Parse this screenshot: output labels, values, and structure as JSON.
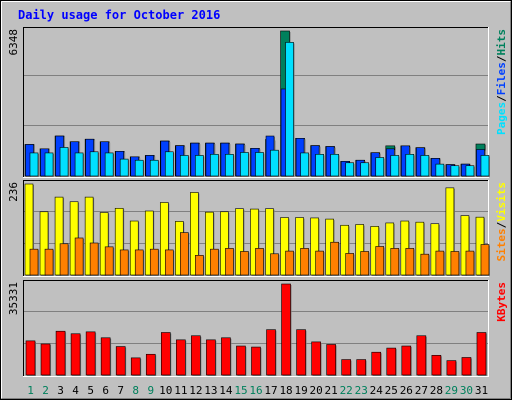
{
  "chart_data": {
    "type": "bar",
    "title": "Daily usage for October 2016",
    "colors": {
      "background": "#c0c0c0",
      "plot_area": "#c0c0c0",
      "title_text": "#0000ff",
      "hits": "#00805c",
      "files": "#0040ff",
      "pages": "#00e0ff",
      "visits": "#ffff00",
      "sites": "#ff8000",
      "kbytes": "#ff0000",
      "weekday_label": "#000000",
      "weekend_label": "#00805c",
      "gridline": "#808080"
    },
    "days": [
      "1",
      "2",
      "3",
      "4",
      "5",
      "6",
      "7",
      "8",
      "9",
      "10",
      "11",
      "12",
      "13",
      "14",
      "15",
      "16",
      "17",
      "18",
      "19",
      "20",
      "21",
      "22",
      "23",
      "24",
      "25",
      "26",
      "27",
      "28",
      "29",
      "30",
      "31"
    ],
    "weekend_days": [
      "1",
      "2",
      "8",
      "9",
      "15",
      "16",
      "22",
      "23",
      "29",
      "30"
    ],
    "panels": [
      {
        "id": "hits",
        "ymax": 6348,
        "max_label": "6348",
        "gridlines": [
          0.35,
          0.7
        ],
        "legend": [
          {
            "text": "Pages",
            "color": "#00e0ff"
          },
          {
            "text": "/",
            "color": "#000000"
          },
          {
            "text": "Files",
            "color": "#0040ff"
          },
          {
            "text": "/",
            "color": "#000000"
          },
          {
            "text": "Hits",
            "color": "#00805c"
          }
        ],
        "series": [
          {
            "name": "Hits",
            "color": "#00805c",
            "values": [
              1380,
              1190,
              1750,
              1500,
              1610,
              1500,
              1080,
              840,
              900,
              1530,
              1330,
              1440,
              1440,
              1440,
              1400,
              1210,
              1600,
              6348,
              1650,
              1330,
              1290,
              640,
              690,
              1020,
              1320,
              1320,
              1240,
              770,
              500,
              520,
              1400
            ]
          },
          {
            "name": "Files",
            "color": "#0040ff",
            "values": [
              1380,
              1190,
              1750,
              1500,
              1610,
              1500,
              1080,
              840,
              900,
              1530,
              1330,
              1440,
              1440,
              1440,
              1400,
              1210,
              1750,
              3810,
              1650,
              1330,
              1290,
              640,
              690,
              1020,
              1190,
              1320,
              1240,
              770,
              500,
              520,
              1160
            ]
          },
          {
            "name": "Pages",
            "color": "#00e0ff",
            "values": [
              1010,
              1010,
              1250,
              1010,
              1060,
              1010,
              740,
              690,
              690,
              1060,
              900,
              900,
              950,
              950,
              1030,
              1030,
              1130,
              5850,
              1010,
              950,
              950,
              580,
              580,
              810,
              900,
              950,
              900,
              520,
              450,
              450,
              900
            ]
          }
        ]
      },
      {
        "id": "visits",
        "ymax": 236,
        "max_label": "236",
        "gridlines": [
          0.35,
          0.7
        ],
        "legend": [
          {
            "text": "Sites",
            "color": "#ff8000"
          },
          {
            "text": "/",
            "color": "#000000"
          },
          {
            "text": "Visits",
            "color": "#ffff00"
          }
        ],
        "series": [
          {
            "name": "Visits",
            "color": "#ffff00",
            "values": [
              236,
              164,
              202,
              190,
              202,
              162,
              173,
              140,
              166,
              188,
              139,
              214,
              163,
              164,
              172,
              171,
              172,
              149,
              149,
              148,
              145,
              129,
              131,
              126,
              135,
              140,
              137,
              133,
              226,
              154,
              150
            ]
          },
          {
            "name": "Sites",
            "color": "#ff8000",
            "values": [
              67,
              67,
              81,
              96,
              83,
              73,
              65,
              65,
              67,
              65,
              110,
              51,
              67,
              69,
              61,
              69,
              55,
              62,
              69,
              62,
              85,
              56,
              61,
              74,
              69,
              69,
              54,
              62,
              61,
              62,
              79
            ]
          }
        ]
      },
      {
        "id": "kbytes",
        "ymax": 35331,
        "max_label": "35331",
        "gridlines": [
          0.35,
          0.7
        ],
        "legend": [
          {
            "text": "KBytes",
            "color": "#ff0000"
          }
        ],
        "series": [
          {
            "name": "KBytes",
            "color": "#ff0000",
            "values": [
              13250,
              12050,
              17000,
              16010,
              16750,
              14450,
              11050,
              6650,
              8050,
              16500,
              13650,
              15240,
              13650,
              14450,
              11250,
              10850,
              17600,
              35331,
              17600,
              12850,
              11850,
              5990,
              5990,
              8850,
              10450,
              11250,
              15240,
              7650,
              5590,
              6800,
              16500
            ]
          }
        ]
      }
    ]
  }
}
